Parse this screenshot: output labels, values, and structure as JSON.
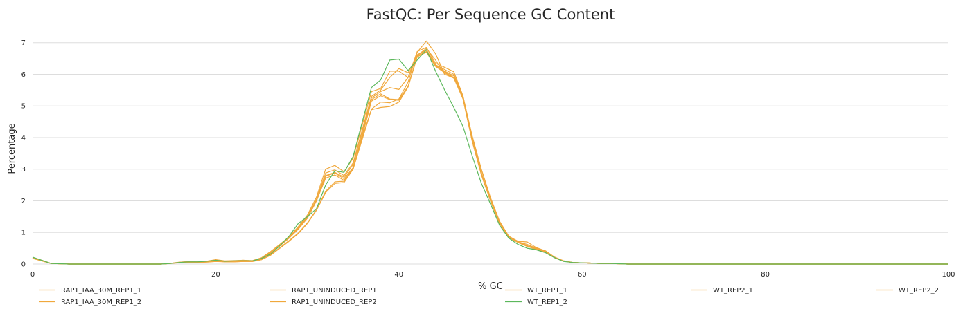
{
  "chart_data": {
    "type": "line",
    "title": "FastQC: Per Sequence GC Content",
    "xlabel": "% GC",
    "ylabel": "Percentage",
    "xlim": [
      0,
      100
    ],
    "ylim": [
      0,
      7.3
    ],
    "x_ticks": [
      0,
      20,
      40,
      60,
      80,
      100
    ],
    "y_ticks": [
      0,
      1,
      2,
      3,
      4,
      5,
      6,
      7
    ],
    "grid": "horizontal",
    "legend_position": "bottom",
    "x": [
      0,
      1,
      2,
      3,
      4,
      5,
      6,
      7,
      8,
      9,
      10,
      11,
      12,
      13,
      14,
      15,
      16,
      17,
      18,
      19,
      20,
      21,
      22,
      23,
      24,
      25,
      26,
      27,
      28,
      29,
      30,
      31,
      32,
      33,
      34,
      35,
      36,
      37,
      38,
      39,
      40,
      41,
      42,
      43,
      44,
      45,
      46,
      47,
      48,
      49,
      50,
      51,
      52,
      53,
      54,
      55,
      56,
      57,
      58,
      59,
      60,
      61,
      62,
      63,
      64,
      65,
      66,
      67,
      68,
      69,
      70,
      71,
      72,
      73,
      74,
      75,
      76,
      77,
      78,
      79,
      80,
      81,
      82,
      83,
      84,
      85,
      86,
      87,
      88,
      89,
      90,
      91,
      92,
      93,
      94,
      95,
      96,
      97,
      98,
      99,
      100
    ],
    "series": [
      {
        "name": "RAP1_IAA_30M_REP1_1",
        "color": "#f0a83c",
        "values": [
          0.2,
          0.12,
          0.02,
          0.01,
          0,
          0,
          0,
          0,
          0,
          0,
          0,
          0,
          0,
          0,
          0,
          0.02,
          0.06,
          0.08,
          0.07,
          0.09,
          0.13,
          0.09,
          0.1,
          0.12,
          0.1,
          0.18,
          0.38,
          0.62,
          0.86,
          1.16,
          1.5,
          2.05,
          2.78,
          2.88,
          2.7,
          3.05,
          4.1,
          5.2,
          5.38,
          5.22,
          5.2,
          5.62,
          6.58,
          6.72,
          6.28,
          6.08,
          5.9,
          5.25,
          3.9,
          2.85,
          2.02,
          1.3,
          0.86,
          0.72,
          0.58,
          0.5,
          0.4,
          0.22,
          0.1,
          0.05,
          0.04,
          0.03,
          0.02,
          0.02,
          0.01,
          0,
          0,
          0,
          0,
          0,
          0,
          0,
          0,
          0,
          0,
          0,
          0,
          0,
          0,
          0,
          0,
          0,
          0,
          0,
          0,
          0,
          0,
          0,
          0,
          0,
          0,
          0,
          0,
          0,
          0,
          0,
          0,
          0,
          0,
          0,
          0
        ]
      },
      {
        "name": "RAP1_IAA_30M_REP1_2",
        "color": "#f0a83c",
        "values": [
          0.2,
          0.12,
          0.02,
          0.01,
          0,
          0,
          0,
          0,
          0,
          0,
          0,
          0,
          0,
          0,
          0,
          0.02,
          0.05,
          0.07,
          0.06,
          0.08,
          0.11,
          0.08,
          0.09,
          0.1,
          0.09,
          0.16,
          0.34,
          0.58,
          0.82,
          1.1,
          1.45,
          2.0,
          2.72,
          2.82,
          2.65,
          3.0,
          4.05,
          5.15,
          5.32,
          5.2,
          5.18,
          5.6,
          6.55,
          6.7,
          6.25,
          6.05,
          5.88,
          5.22,
          3.88,
          2.82,
          2.0,
          1.28,
          0.85,
          0.7,
          0.56,
          0.48,
          0.38,
          0.2,
          0.09,
          0.05,
          0.04,
          0.03,
          0.02,
          0.02,
          0.01,
          0,
          0,
          0,
          0,
          0,
          0,
          0,
          0,
          0,
          0,
          0,
          0,
          0,
          0,
          0,
          0,
          0,
          0,
          0,
          0,
          0,
          0,
          0,
          0,
          0,
          0,
          0,
          0,
          0,
          0,
          0,
          0,
          0,
          0,
          0,
          0
        ]
      },
      {
        "name": "RAP1_UNINDUCED_REP1",
        "color": "#f0a83c",
        "values": [
          0.18,
          0.1,
          0.02,
          0.01,
          0,
          0,
          0,
          0,
          0,
          0,
          0,
          0,
          0,
          0,
          0,
          0.02,
          0.04,
          0.05,
          0.05,
          0.07,
          0.09,
          0.07,
          0.07,
          0.08,
          0.08,
          0.14,
          0.3,
          0.52,
          0.74,
          0.98,
          1.3,
          1.72,
          2.3,
          2.6,
          2.62,
          3.05,
          4.0,
          4.9,
          5.12,
          5.1,
          5.22,
          5.75,
          6.7,
          7.05,
          6.65,
          6.0,
          5.9,
          5.3,
          4.05,
          3.0,
          2.1,
          1.35,
          0.88,
          0.72,
          0.7,
          0.52,
          0.42,
          0.22,
          0.1,
          0.05,
          0.04,
          0.03,
          0.02,
          0.02,
          0.01,
          0,
          0,
          0,
          0,
          0,
          0,
          0,
          0,
          0,
          0,
          0,
          0,
          0,
          0,
          0,
          0,
          0,
          0,
          0,
          0,
          0,
          0,
          0,
          0,
          0,
          0,
          0,
          0,
          0,
          0,
          0,
          0,
          0,
          0,
          0,
          0
        ]
      },
      {
        "name": "RAP1_UNINDUCED_REP2",
        "color": "#f0a83c",
        "values": [
          0.18,
          0.1,
          0.02,
          0.01,
          0,
          0,
          0,
          0,
          0,
          0,
          0,
          0,
          0,
          0,
          0,
          0.02,
          0.04,
          0.05,
          0.05,
          0.06,
          0.08,
          0.07,
          0.07,
          0.08,
          0.08,
          0.14,
          0.28,
          0.5,
          0.72,
          0.96,
          1.28,
          1.7,
          2.26,
          2.55,
          2.58,
          3.0,
          3.95,
          4.88,
          4.95,
          4.98,
          5.12,
          5.6,
          6.6,
          6.82,
          6.45,
          6.0,
          5.88,
          5.28,
          4.02,
          2.98,
          2.08,
          1.32,
          0.86,
          0.7,
          0.62,
          0.5,
          0.4,
          0.2,
          0.09,
          0.05,
          0.04,
          0.03,
          0.02,
          0.02,
          0.01,
          0,
          0,
          0,
          0,
          0,
          0,
          0,
          0,
          0,
          0,
          0,
          0,
          0,
          0,
          0,
          0,
          0,
          0,
          0,
          0,
          0,
          0,
          0,
          0,
          0,
          0,
          0,
          0,
          0,
          0,
          0,
          0,
          0,
          0,
          0,
          0
        ]
      },
      {
        "name": "WT_REP1_1",
        "color": "#f0a83c",
        "values": [
          0.2,
          0.12,
          0.02,
          0.01,
          0,
          0,
          0,
          0,
          0,
          0,
          0,
          0,
          0,
          0,
          0,
          0.02,
          0.06,
          0.08,
          0.07,
          0.09,
          0.14,
          0.1,
          0.11,
          0.12,
          0.11,
          0.2,
          0.4,
          0.62,
          0.86,
          1.18,
          1.55,
          2.12,
          3.0,
          3.12,
          2.92,
          3.35,
          4.4,
          5.45,
          5.55,
          6.1,
          6.1,
          5.9,
          6.72,
          6.85,
          6.35,
          6.22,
          6.08,
          5.32,
          3.95,
          2.88,
          2.0,
          1.28,
          0.84,
          0.68,
          0.56,
          0.46,
          0.36,
          0.2,
          0.09,
          0.05,
          0.04,
          0.03,
          0.02,
          0.02,
          0.01,
          0,
          0,
          0,
          0,
          0,
          0,
          0,
          0,
          0,
          0,
          0,
          0,
          0,
          0,
          0,
          0,
          0,
          0,
          0,
          0,
          0,
          0,
          0,
          0,
          0,
          0,
          0,
          0,
          0,
          0,
          0,
          0,
          0,
          0,
          0,
          0
        ]
      },
      {
        "name": "WT_REP1_2",
        "color": "#5cb85c",
        "values": [
          0.22,
          0.12,
          0.02,
          0.01,
          0,
          0,
          0,
          0,
          0,
          0,
          0,
          0,
          0,
          0,
          0,
          0.02,
          0.05,
          0.07,
          0.07,
          0.09,
          0.12,
          0.09,
          0.1,
          0.1,
          0.1,
          0.18,
          0.32,
          0.58,
          0.88,
          1.28,
          1.5,
          1.75,
          2.5,
          2.95,
          2.9,
          3.4,
          4.5,
          5.58,
          5.82,
          6.45,
          6.48,
          6.12,
          6.45,
          6.78,
          6.1,
          5.5,
          4.95,
          4.35,
          3.42,
          2.55,
          1.9,
          1.22,
          0.82,
          0.62,
          0.5,
          0.45,
          0.36,
          0.2,
          0.08,
          0.05,
          0.04,
          0.03,
          0.02,
          0.02,
          0.01,
          0,
          0,
          0,
          0,
          0,
          0,
          0,
          0,
          0,
          0,
          0,
          0,
          0,
          0,
          0,
          0,
          0,
          0,
          0,
          0,
          0,
          0,
          0,
          0,
          0,
          0,
          0,
          0,
          0,
          0,
          0,
          0,
          0,
          0,
          0,
          0
        ]
      },
      {
        "name": "WT_REP2_1",
        "color": "#f0a83c",
        "values": [
          0.2,
          0.12,
          0.02,
          0.01,
          0,
          0,
          0,
          0,
          0,
          0,
          0,
          0,
          0,
          0,
          0,
          0.02,
          0.05,
          0.07,
          0.07,
          0.08,
          0.12,
          0.09,
          0.1,
          0.11,
          0.1,
          0.18,
          0.36,
          0.6,
          0.84,
          1.14,
          1.48,
          2.05,
          2.88,
          2.98,
          2.8,
          3.2,
          4.25,
          5.3,
          5.5,
          5.9,
          6.18,
          6.05,
          6.6,
          6.78,
          6.3,
          6.15,
          6.0,
          5.28,
          3.92,
          2.86,
          2.02,
          1.28,
          0.85,
          0.7,
          0.57,
          0.48,
          0.38,
          0.2,
          0.09,
          0.05,
          0.04,
          0.03,
          0.02,
          0.02,
          0.01,
          0,
          0,
          0,
          0,
          0,
          0,
          0,
          0,
          0,
          0,
          0,
          0,
          0,
          0,
          0,
          0,
          0,
          0,
          0,
          0,
          0,
          0,
          0,
          0,
          0,
          0,
          0,
          0,
          0,
          0,
          0,
          0,
          0,
          0,
          0,
          0
        ]
      },
      {
        "name": "WT_REP2_2",
        "color": "#f0a83c",
        "values": [
          0.2,
          0.12,
          0.02,
          0.01,
          0,
          0,
          0,
          0,
          0,
          0,
          0,
          0,
          0,
          0,
          0,
          0.02,
          0.05,
          0.07,
          0.06,
          0.08,
          0.11,
          0.08,
          0.09,
          0.1,
          0.09,
          0.17,
          0.34,
          0.58,
          0.82,
          1.12,
          1.45,
          2.0,
          2.8,
          2.9,
          2.75,
          3.15,
          4.2,
          5.25,
          5.45,
          5.58,
          5.52,
          5.9,
          6.62,
          6.76,
          6.28,
          6.1,
          5.95,
          5.25,
          3.9,
          2.84,
          2.0,
          1.28,
          0.85,
          0.7,
          0.57,
          0.48,
          0.38,
          0.2,
          0.09,
          0.05,
          0.04,
          0.03,
          0.02,
          0.02,
          0.01,
          0,
          0,
          0,
          0,
          0,
          0,
          0,
          0,
          0,
          0,
          0,
          0,
          0,
          0,
          0,
          0,
          0,
          0,
          0,
          0,
          0,
          0,
          0,
          0,
          0,
          0,
          0,
          0,
          0,
          0,
          0,
          0,
          0,
          0,
          0,
          0
        ]
      }
    ],
    "legend_order": [
      "RAP1_IAA_30M_REP1_1",
      "RAP1_UNINDUCED_REP1",
      "WT_REP1_1",
      "WT_REP2_1",
      "WT_REP2_2",
      "RAP1_IAA_30M_REP1_2",
      "RAP1_UNINDUCED_REP2",
      "WT_REP1_2"
    ]
  }
}
